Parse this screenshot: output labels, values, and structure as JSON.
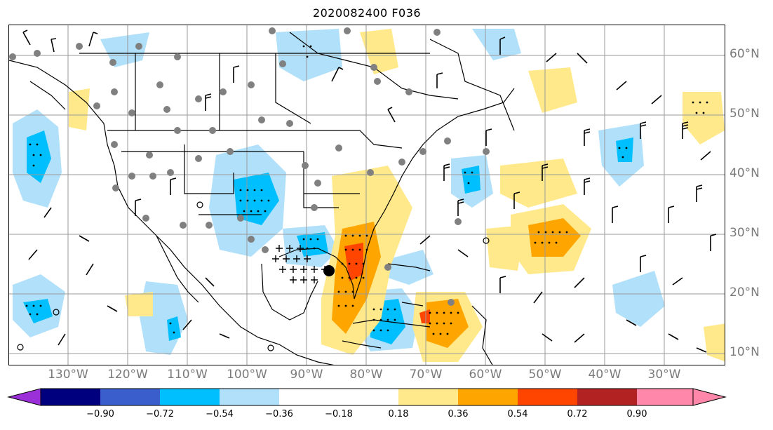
{
  "title": "2020082400 F036",
  "lon_labels": [
    "130°W",
    "120°W",
    "110°W",
    "100°W",
    "90°W",
    "80°W",
    "70°W",
    "60°W",
    "50°W",
    "40°W",
    "30°W"
  ],
  "lat_labels": [
    "60°N",
    "50°N",
    "40°N",
    "30°N",
    "20°N",
    "10°N"
  ],
  "colorbar": {
    "tick_labels": [
      "−0.90",
      "−0.72",
      "−0.54",
      "−0.36",
      "−0.18",
      "0.18",
      "0.36",
      "0.54",
      "0.72",
      "0.90"
    ],
    "colors": [
      "#9b30d9",
      "#00007f",
      "#3a5fcd",
      "#00bfff",
      "#b0e0fa",
      "#ffffff",
      "#ffe98a",
      "#ffa500",
      "#ff4500",
      "#b22222",
      "#ff88aa"
    ]
  },
  "map": {
    "shading_colors": {
      "light_blue": "#b0e0fa",
      "cyan": "#00bfff",
      "light_yellow": "#ffe98a",
      "orange": "#ffa500",
      "red": "#ff4500"
    },
    "marker_colors": {
      "grey_dot": "#808080",
      "black_dot": "#000000"
    }
  }
}
